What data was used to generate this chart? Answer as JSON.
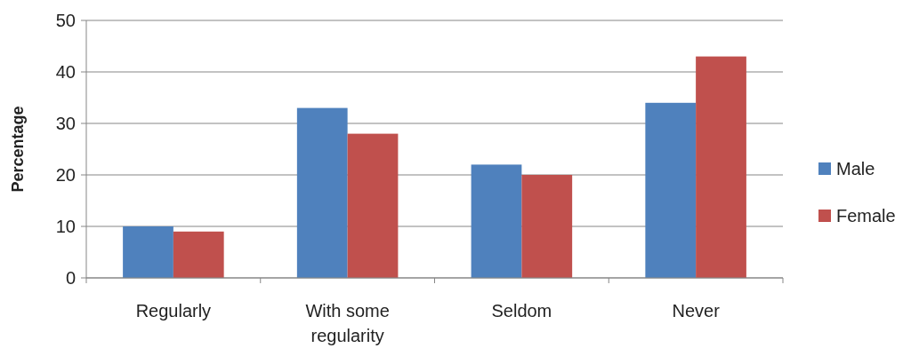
{
  "chart_data": {
    "type": "bar",
    "ylabel": "Percentage",
    "categories": [
      "Regularly",
      "With some regularity",
      "Seldom",
      "Never"
    ],
    "series": [
      {
        "name": "Male",
        "color": "#4f81bd",
        "values": [
          10,
          33,
          22,
          34
        ]
      },
      {
        "name": "Female",
        "color": "#c0504d",
        "values": [
          9,
          28,
          20,
          43
        ]
      }
    ],
    "ylim": [
      0,
      50
    ],
    "yticks": [
      0,
      10,
      20,
      30,
      40,
      50
    ],
    "grid": "y",
    "legend": "right"
  }
}
